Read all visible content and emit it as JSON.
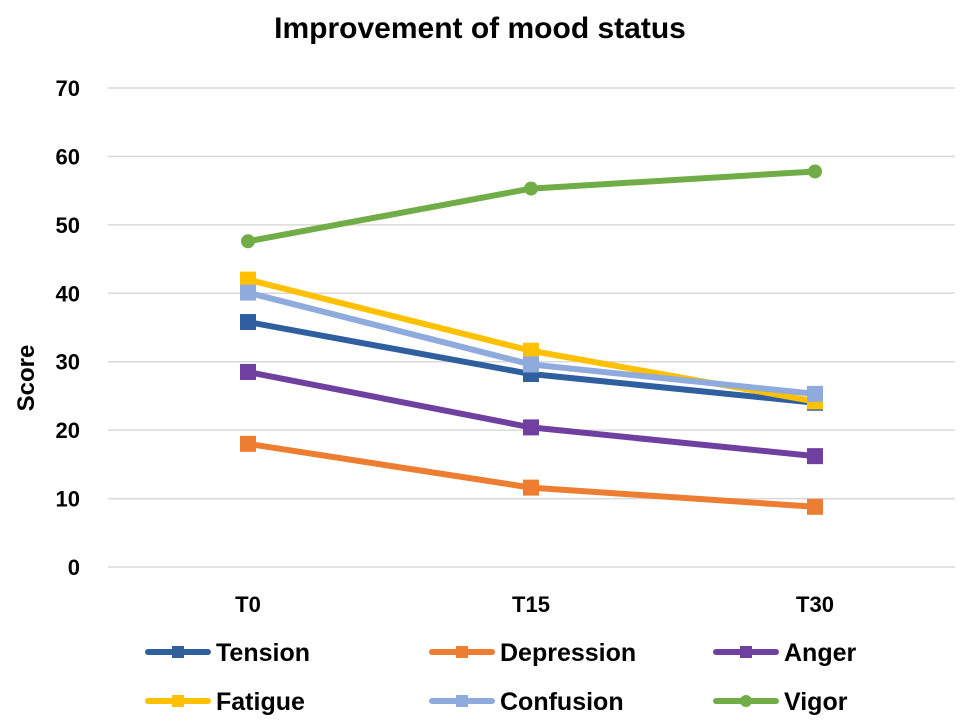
{
  "chart_data": {
    "type": "line",
    "title": "Improvement of mood status",
    "xlabel": "",
    "ylabel": "Score",
    "categories": [
      "T0",
      "T15",
      "T30"
    ],
    "ylim": [
      0,
      70
    ],
    "yticks": [
      0,
      10,
      20,
      30,
      40,
      50,
      60,
      70
    ],
    "grid": true,
    "legend_position": "bottom",
    "series": [
      {
        "name": "Tension",
        "values": [
          35.8,
          28.2,
          24.0
        ],
        "color": "#2f5f9e",
        "marker": "square"
      },
      {
        "name": "Depression",
        "values": [
          18.0,
          11.6,
          8.8
        ],
        "color": "#ed7d31",
        "marker": "square"
      },
      {
        "name": "Anger",
        "values": [
          28.5,
          20.4,
          16.2
        ],
        "color": "#7040a0",
        "marker": "square"
      },
      {
        "name": "Fatigue",
        "values": [
          42.0,
          31.6,
          24.2
        ],
        "color": "#ffc000",
        "marker": "square"
      },
      {
        "name": "Confusion",
        "values": [
          40.1,
          29.6,
          25.3
        ],
        "color": "#8faadc",
        "marker": "square"
      },
      {
        "name": "Vigor",
        "values": [
          47.6,
          55.3,
          57.8
        ],
        "color": "#70ad47",
        "marker": "circle"
      }
    ]
  }
}
